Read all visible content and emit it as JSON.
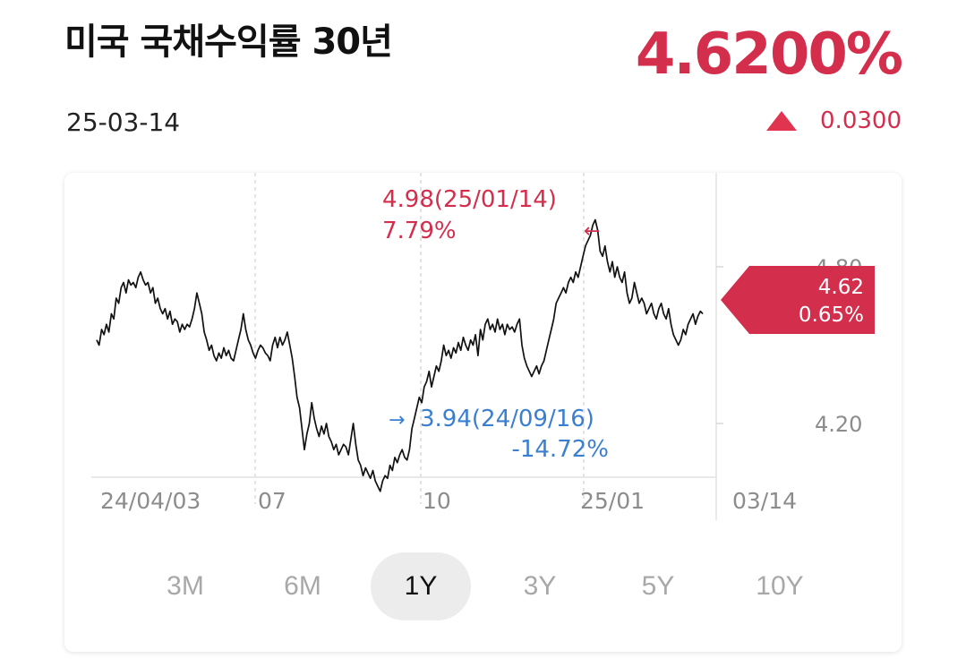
{
  "header": {
    "title": "미국 국채수익률 30년",
    "price": "4.6200%",
    "date": "25-03-14",
    "change": "0.0300"
  },
  "colors": {
    "up": "#d42e4d",
    "down": "#3b7fd1",
    "line": "#111111",
    "grid": "#d0d0d0",
    "axis_text": "#8c8c8c"
  },
  "ranges": [
    "3M",
    "6M",
    "1Y",
    "3Y",
    "5Y",
    "10Y"
  ],
  "active_range": "1Y",
  "chart_data": {
    "type": "line",
    "x_tick_labels": [
      "24/04/03",
      "07",
      "10",
      "25/01",
      "03/14"
    ],
    "y_tick_labels": [
      "4.80",
      "4.20"
    ],
    "y_ticks": [
      4.8,
      4.2
    ],
    "ylim": [
      3.72,
      5.16
    ],
    "x_range_index": [
      0,
      240
    ],
    "vertical_gridlines": true,
    "max_annotation": {
      "value": 4.98,
      "date": "25/01/14",
      "label": "4.98(25/01/14)",
      "pct": "7.79%"
    },
    "min_annotation": {
      "value": 3.94,
      "date": "24/09/16",
      "label": "3.94(24/09/16)",
      "pct": "-14.72%"
    },
    "current_tag": {
      "value": "4.62",
      "pct": "0.65%"
    },
    "values": [
      4.52,
      4.5,
      4.56,
      4.54,
      4.58,
      4.55,
      4.62,
      4.6,
      4.68,
      4.66,
      4.72,
      4.74,
      4.7,
      4.75,
      4.73,
      4.74,
      4.72,
      4.76,
      4.78,
      4.75,
      4.73,
      4.74,
      4.7,
      4.72,
      4.66,
      4.68,
      4.64,
      4.62,
      4.64,
      4.6,
      4.63,
      4.58,
      4.6,
      4.59,
      4.55,
      4.58,
      4.56,
      4.58,
      4.57,
      4.6,
      4.64,
      4.7,
      4.66,
      4.62,
      4.55,
      4.52,
      4.48,
      4.5,
      4.46,
      4.44,
      4.47,
      4.45,
      4.49,
      4.46,
      4.48,
      4.45,
      4.44,
      4.48,
      4.52,
      4.56,
      4.62,
      4.56,
      4.52,
      4.5,
      4.47,
      4.45,
      4.48,
      4.5,
      4.49,
      4.47,
      4.46,
      4.44,
      4.5,
      4.53,
      4.49,
      4.53,
      4.5,
      4.52,
      4.55,
      4.5,
      4.45,
      4.38,
      4.3,
      4.26,
      4.18,
      4.1,
      4.16,
      4.2,
      4.28,
      4.22,
      4.18,
      4.15,
      4.19,
      4.16,
      4.2,
      4.15,
      4.13,
      4.1,
      4.12,
      4.08,
      4.1,
      4.12,
      4.11,
      4.08,
      4.14,
      4.2,
      4.12,
      4.06,
      4.04,
      4.0,
      4.03,
      4.01,
      3.99,
      4.02,
      3.98,
      3.96,
      3.94,
      3.98,
      4.0,
      3.99,
      4.04,
      4.02,
      4.07,
      4.05,
      4.08,
      4.1,
      4.07,
      4.06,
      4.1,
      4.18,
      4.22,
      4.26,
      4.3,
      4.28,
      4.34,
      4.36,
      4.4,
      4.34,
      4.38,
      4.42,
      4.4,
      4.44,
      4.5,
      4.46,
      4.48,
      4.45,
      4.49,
      4.47,
      4.51,
      4.48,
      4.53,
      4.5,
      4.48,
      4.52,
      4.5,
      4.54,
      4.46,
      4.56,
      4.52,
      4.58,
      4.6,
      4.56,
      4.58,
      4.55,
      4.6,
      4.56,
      4.58,
      4.54,
      4.58,
      4.56,
      4.57,
      4.55,
      4.58,
      4.6,
      4.5,
      4.45,
      4.42,
      4.4,
      4.38,
      4.4,
      4.42,
      4.39,
      4.42,
      4.44,
      4.48,
      4.52,
      4.56,
      4.6,
      4.66,
      4.68,
      4.7,
      4.72,
      4.7,
      4.74,
      4.76,
      4.74,
      4.78,
      4.76,
      4.8,
      4.84,
      4.88,
      4.9,
      4.92,
      4.96,
      4.98,
      4.94,
      4.86,
      4.84,
      4.88,
      4.82,
      4.78,
      4.82,
      4.76,
      4.8,
      4.76,
      4.74,
      4.78,
      4.7,
      4.66,
      4.68,
      4.74,
      4.7,
      4.66,
      4.68,
      4.66,
      4.62,
      4.64,
      4.66,
      4.62,
      4.6,
      4.64,
      4.66,
      4.62,
      4.6,
      4.64,
      4.58,
      4.54,
      4.52,
      4.5,
      4.52,
      4.56,
      4.54,
      4.58,
      4.6,
      4.62,
      4.58,
      4.61,
      4.63,
      4.62
    ]
  }
}
